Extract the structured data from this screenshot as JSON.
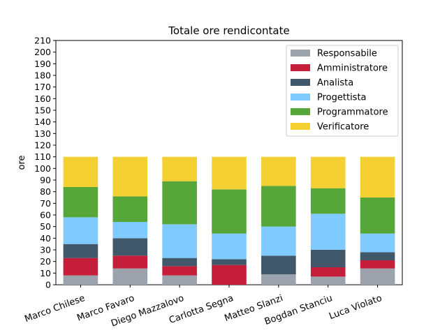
{
  "chart_data": {
    "type": "bar",
    "stacked": true,
    "title": "Totale ore rendicontate",
    "ylabel": "ore",
    "xlabel": "",
    "ylim": [
      0,
      210
    ],
    "ytick_step": 10,
    "grid": false,
    "legend_position": "top-right",
    "categories": [
      "Marco Chilese",
      "Marco Favaro",
      "Diego Mazzalovo",
      "Carlotta Segna",
      "Matteo Slanzi",
      "Bogdan Stanciu",
      "Luca Violato"
    ],
    "series": [
      {
        "name": "Responsabile",
        "color": "#9da3ad",
        "values": [
          8,
          14,
          8,
          0,
          9,
          7,
          14
        ]
      },
      {
        "name": "Amministratore",
        "color": "#c41e3a",
        "values": [
          15,
          11,
          8,
          17,
          0,
          8,
          7
        ]
      },
      {
        "name": "Analista",
        "color": "#40586a",
        "values": [
          12,
          15,
          7,
          5,
          16,
          15,
          7
        ]
      },
      {
        "name": "Progettista",
        "color": "#7fcbff",
        "values": [
          23,
          14,
          29,
          22,
          25,
          31,
          16
        ]
      },
      {
        "name": "Programmatore",
        "color": "#56a63a",
        "values": [
          26,
          22,
          37,
          38,
          35,
          22,
          31
        ]
      },
      {
        "name": "Verificatore",
        "color": "#f5d033",
        "values": [
          26,
          34,
          21,
          28,
          25,
          27,
          35
        ]
      }
    ]
  }
}
